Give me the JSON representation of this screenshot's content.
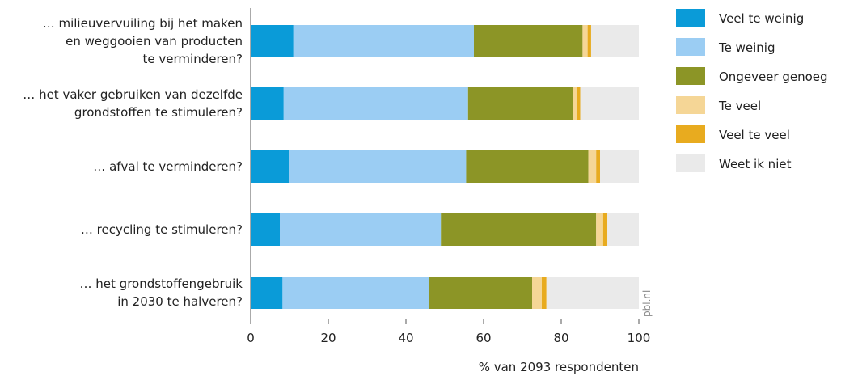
{
  "chart_data": {
    "type": "bar",
    "orientation": "horizontal",
    "stacked": true,
    "categories": [
      [
        "… milieuvervuiling bij het maken",
        "en weggooien van producten",
        "te verminderen?"
      ],
      [
        "… het vaker gebruiken van dezelfde",
        "grondstoffen te stimuleren?"
      ],
      [
        "… afval te verminderen?"
      ],
      [
        "… recycling te stimuleren?"
      ],
      [
        "… het grondstoffengebruik",
        "in 2030 te halveren?"
      ]
    ],
    "series": [
      {
        "name": "Veel te weinig",
        "color": "#0a9bd8",
        "values": [
          11,
          8.5,
          10,
          7.5,
          8.2
        ]
      },
      {
        "name": "Te weinig",
        "color": "#9bcdf3",
        "values": [
          46.5,
          47.5,
          45.5,
          41.5,
          37.8
        ]
      },
      {
        "name": "Ongeveer genoeg",
        "color": "#8c9526",
        "values": [
          28,
          27,
          31.5,
          40,
          26.5
        ]
      },
      {
        "name": "Te veel",
        "color": "#f5d696",
        "values": [
          1.3,
          1,
          2,
          1.8,
          2.5
        ]
      },
      {
        "name": "Veel te veel",
        "color": "#e8ab1f",
        "values": [
          0.9,
          0.9,
          1,
          1.1,
          1.2
        ]
      },
      {
        "name": "Weet ik niet",
        "color": "#eaeaea",
        "values": [
          12.3,
          15.1,
          10,
          8.1,
          23.8
        ]
      }
    ],
    "x_ticks": [
      0,
      20,
      40,
      60,
      80,
      100
    ],
    "xlim": [
      0,
      100
    ],
    "xlabel": "% van 2093 respondenten",
    "legend_position": "right",
    "grid": false,
    "source": "pbl.nl"
  }
}
